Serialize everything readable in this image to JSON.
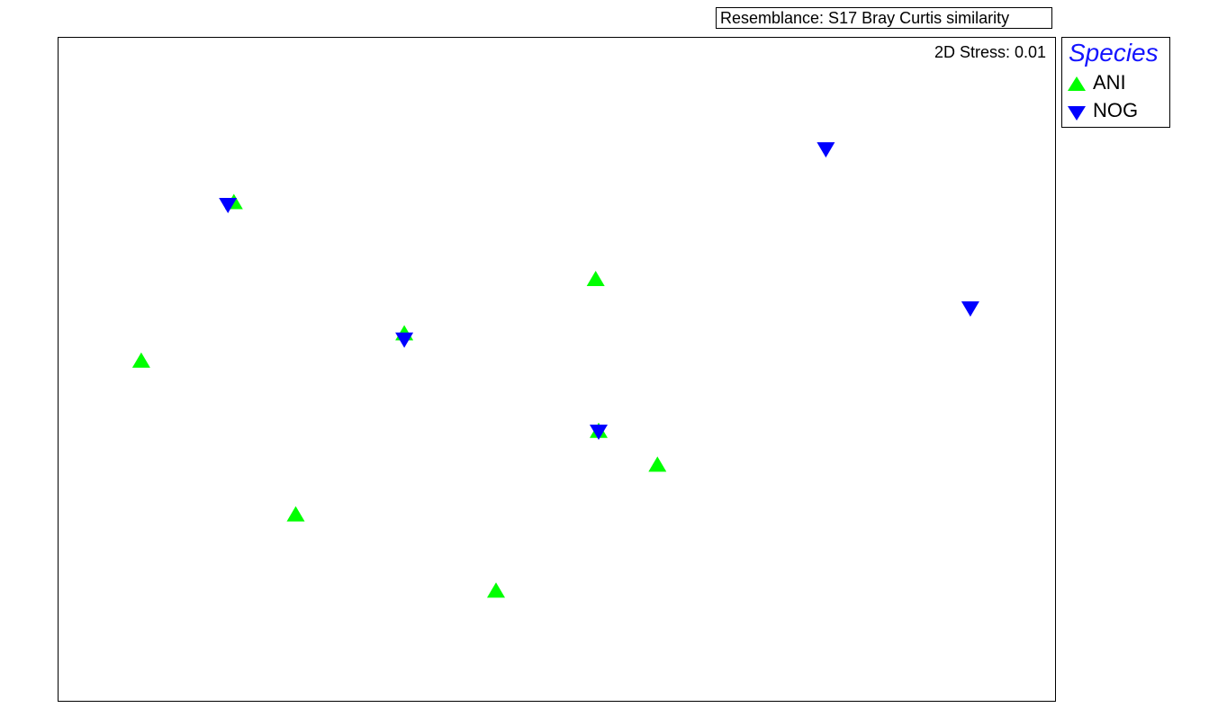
{
  "header": {
    "resemblance": "Resemblance: S17 Bray Curtis similarity"
  },
  "plot": {
    "stress": "2D Stress: 0.01"
  },
  "legend": {
    "title": "Species",
    "entries": [
      {
        "label": "ANI",
        "marker": "triangle-up",
        "color": "#00ff00"
      },
      {
        "label": "NOG",
        "marker": "triangle-down",
        "color": "#0000ff"
      }
    ]
  },
  "chart_data": {
    "type": "scatter",
    "xlim": [
      0,
      100
    ],
    "ylim": [
      0,
      100
    ],
    "grid": false,
    "legend_position": "right",
    "series": [
      {
        "name": "ANI",
        "marker": "triangle-up",
        "color": "#00ff00",
        "points": [
          [
            17.6,
            75.1
          ],
          [
            8.3,
            51.2
          ],
          [
            34.7,
            55.3
          ],
          [
            53.9,
            63.5
          ],
          [
            54.2,
            40.6
          ],
          [
            60.1,
            35.5
          ],
          [
            23.8,
            28.0
          ],
          [
            43.9,
            16.5
          ]
        ]
      },
      {
        "name": "NOG",
        "marker": "triangle-down",
        "color": "#0000ff",
        "points": [
          [
            17.0,
            74.9
          ],
          [
            34.7,
            54.6
          ],
          [
            54.2,
            40.7
          ],
          [
            77.0,
            83.3
          ],
          [
            91.5,
            59.3
          ]
        ]
      }
    ]
  }
}
